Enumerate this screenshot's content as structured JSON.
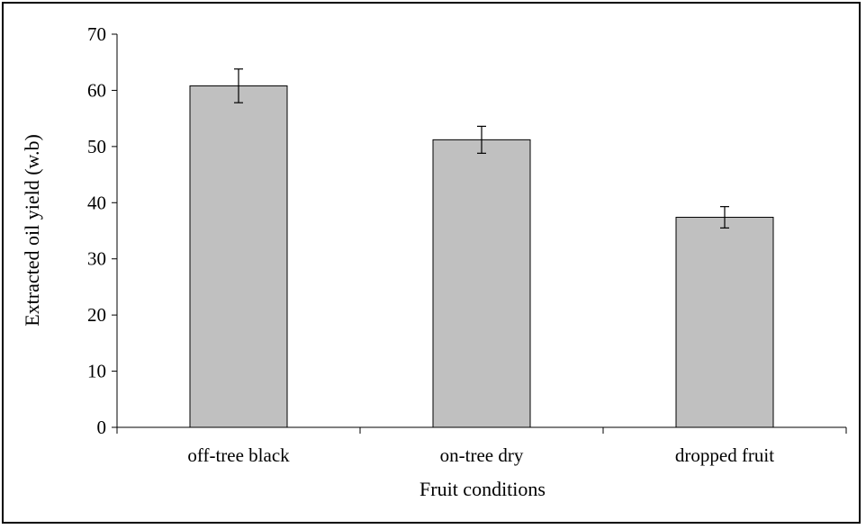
{
  "chart_data": {
    "type": "bar",
    "title": "",
    "xlabel": "Fruit conditions",
    "ylabel": "Extracted oil yield (w.b)",
    "categories": [
      "off-tree black",
      "on-tree dry",
      "dropped fruit"
    ],
    "values": [
      60.8,
      51.2,
      37.4
    ],
    "error": [
      3.0,
      2.4,
      1.9
    ],
    "ylim": [
      0,
      70
    ],
    "yticks": [
      0,
      10,
      20,
      30,
      40,
      50,
      60,
      70
    ],
    "grid": false,
    "legend": "none",
    "colors": {
      "bar_fill": "#c0c0c0",
      "bar_stroke": "#000000",
      "axis": "#000000"
    }
  }
}
